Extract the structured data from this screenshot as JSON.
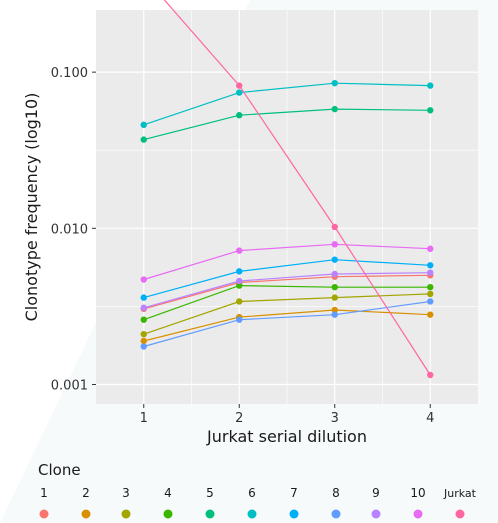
{
  "chart_data": {
    "type": "line",
    "ylabel": "Clonotype frequency (log10)",
    "xlabel": "Jurkat serial dilution",
    "y_scale": "log10",
    "ylim": [
      0.00075,
      0.25
    ],
    "xlim": [
      0.5,
      4.5
    ],
    "x": [
      1,
      2,
      3,
      4
    ],
    "x_ticks": [
      "1",
      "2",
      "3",
      "4"
    ],
    "y_ticks": [
      {
        "value": 0.1,
        "label": "0.100"
      },
      {
        "value": 0.01,
        "label": "0.010"
      },
      {
        "value": 0.001,
        "label": "0.001"
      }
    ],
    "grid": true,
    "panel_background": "#ebebeb",
    "legend": {
      "title": "Clone",
      "position": "bottom"
    },
    "series": [
      {
        "name": "1",
        "color": "#F8766D",
        "values": [
          0.00305,
          0.0045,
          0.0049,
          0.005
        ]
      },
      {
        "name": "2",
        "color": "#D89000",
        "values": [
          0.0019,
          0.0027,
          0.003,
          0.0028
        ]
      },
      {
        "name": "3",
        "color": "#A3A500",
        "values": [
          0.0021,
          0.0034,
          0.0036,
          0.0038
        ]
      },
      {
        "name": "4",
        "color": "#39B600",
        "values": [
          0.0026,
          0.0043,
          0.0042,
          0.0042
        ]
      },
      {
        "name": "5",
        "color": "#00BF7D",
        "values": [
          0.037,
          0.053,
          0.058,
          0.057
        ]
      },
      {
        "name": "6",
        "color": "#00BFC4",
        "values": [
          0.046,
          0.074,
          0.085,
          0.082
        ]
      },
      {
        "name": "7",
        "color": "#00B0F6",
        "values": [
          0.0036,
          0.0053,
          0.0063,
          0.0058
        ]
      },
      {
        "name": "8",
        "color": "#619CFF",
        "values": [
          0.00175,
          0.0026,
          0.0028,
          0.0034
        ]
      },
      {
        "name": "9",
        "color": "#B983FF",
        "values": [
          0.0031,
          0.0046,
          0.0051,
          0.0052
        ]
      },
      {
        "name": "10",
        "color": "#E76BF3",
        "values": [
          0.0047,
          0.0072,
          0.0079,
          0.0074
        ]
      },
      {
        "name": "Jurkat",
        "color": "#FF67A4",
        "values": [
          0.41,
          0.082,
          0.0102,
          0.00115
        ]
      }
    ]
  }
}
